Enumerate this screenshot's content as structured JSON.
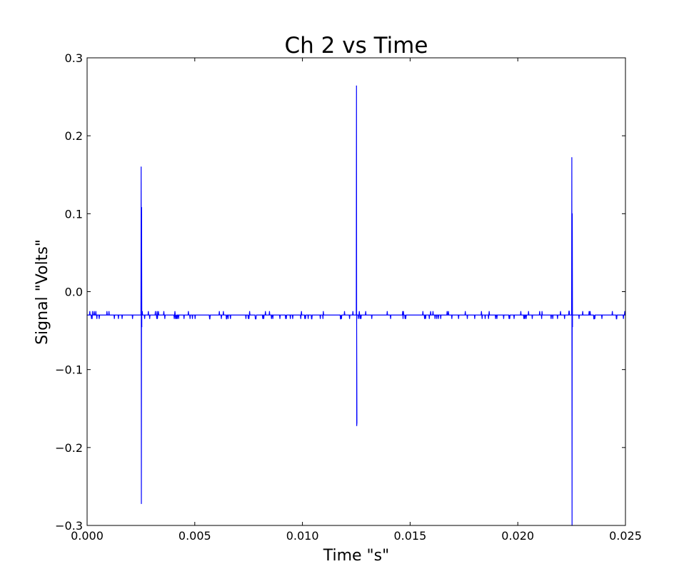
{
  "chart_data": {
    "type": "line",
    "title": "Ch 2 vs Time",
    "xlabel": "Time \"s\"",
    "ylabel": "Signal \"Volts\"",
    "xlim": [
      0.0,
      0.025
    ],
    "ylim": [
      -0.3,
      0.3
    ],
    "x_ticks": [
      "0.000",
      "0.005",
      "0.010",
      "0.015",
      "0.020",
      "0.025"
    ],
    "y_ticks": [
      "0.3",
      "0.2",
      "0.1",
      "0.0",
      "−0.1",
      "−0.2",
      "−0.3"
    ],
    "x_tick_values": [
      0.0,
      0.005,
      0.01,
      0.015,
      0.02,
      0.025
    ],
    "y_tick_values": [
      0.3,
      0.2,
      0.1,
      0.0,
      -0.1,
      -0.2,
      -0.3
    ],
    "grid": false,
    "legend": "none",
    "line_color": "#0000ff",
    "series": [
      {
        "baseline": -0.03,
        "noise_band": [
          -0.035,
          -0.025
        ],
        "x": [
          0.0,
          0.0025,
          0.00251,
          0.00252,
          0.00253,
          0.00254,
          0.00255,
          0.0125,
          0.01251,
          0.01252,
          0.01253,
          0.01254,
          0.0225,
          0.02251,
          0.02252,
          0.02253,
          0.02254,
          0.025
        ],
        "y": [
          -0.03,
          -0.03,
          0.16,
          -0.272,
          0.108,
          -0.045,
          -0.03,
          -0.03,
          0.264,
          -0.172,
          -0.168,
          -0.03,
          -0.03,
          0.172,
          -0.3,
          0.1,
          -0.045,
          -0.03
        ]
      }
    ]
  }
}
